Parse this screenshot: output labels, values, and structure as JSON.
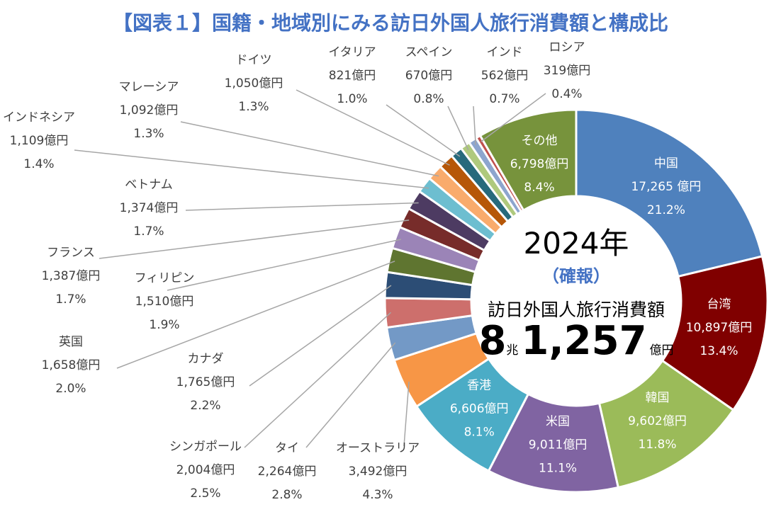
{
  "chart_data": {
    "type": "pie",
    "variant": "donut",
    "title": "【図表１】国籍・地域別にみる訪日外国人旅行消費額と構成比",
    "unit": "億円",
    "center": {
      "year": "2024年",
      "status": "（確報）",
      "caption": "訪日外国人旅行消費額",
      "total_cho": "8",
      "cho_unit": "兆",
      "total_oku": "1,257",
      "oku_unit": "億円"
    },
    "slices": [
      {
        "name": "中国",
        "value": 17265,
        "value_label": "17,265 億円",
        "pct": "21.2%",
        "color": "#4F81BD"
      },
      {
        "name": "台湾",
        "value": 10897,
        "value_label": "10,897億円",
        "pct": "13.4%",
        "color": "#800000"
      },
      {
        "name": "韓国",
        "value": 9602,
        "value_label": "9,602億円",
        "pct": "11.8%",
        "color": "#9BBB59"
      },
      {
        "name": "米国",
        "value": 9011,
        "value_label": "9,011億円",
        "pct": "11.1%",
        "color": "#8064A2"
      },
      {
        "name": "香港",
        "value": 6606,
        "value_label": "6,606億円",
        "pct": "8.1%",
        "color": "#4BACC6"
      },
      {
        "name": "オーストラリア",
        "value": 3492,
        "value_label": "3,492億円",
        "pct": "4.3%",
        "color": "#F79646"
      },
      {
        "name": "タイ",
        "value": 2264,
        "value_label": "2,264億円",
        "pct": "2.8%",
        "color": "#7399C6"
      },
      {
        "name": "シンガポール",
        "value": 2004,
        "value_label": "2,004億円",
        "pct": "2.5%",
        "color": "#CD6F6C"
      },
      {
        "name": "カナダ",
        "value": 1765,
        "value_label": "1,765億円",
        "pct": "2.2%",
        "color": "#2C4D75"
      },
      {
        "name": "英国",
        "value": 1658,
        "value_label": "1,658億円",
        "pct": "2.0%",
        "color": "#5F7530"
      },
      {
        "name": "フィリピン",
        "value": 1510,
        "value_label": "1,510億円",
        "pct": "1.9%",
        "color": "#9B84B7"
      },
      {
        "name": "フランス",
        "value": 1387,
        "value_label": "1,387億円",
        "pct": "1.7%",
        "color": "#772C2A"
      },
      {
        "name": "ベトナム",
        "value": 1374,
        "value_label": "1,374億円",
        "pct": "1.7%",
        "color": "#4D3B62"
      },
      {
        "name": "インドネシア",
        "value": 1109,
        "value_label": "1,109億円",
        "pct": "1.4%",
        "color": "#6DBED0"
      },
      {
        "name": "マレーシア",
        "value": 1092,
        "value_label": "1,092億円",
        "pct": "1.3%",
        "color": "#F9AB6C"
      },
      {
        "name": "ドイツ",
        "value": 1050,
        "value_label": "1,050億円",
        "pct": "1.3%",
        "color": "#B65708"
      },
      {
        "name": "イタリア",
        "value": 821,
        "value_label": "821億円",
        "pct": "1.0%",
        "color": "#276A7C"
      },
      {
        "name": "スペイン",
        "value": 670,
        "value_label": "670億円",
        "pct": "0.8%",
        "color": "#AFC97D"
      },
      {
        "name": "インド",
        "value": 562,
        "value_label": "562億円",
        "pct": "0.7%",
        "color": "#8DA5CE"
      },
      {
        "name": "ロシア",
        "value": 319,
        "value_label": "319億円",
        "pct": "0.4%",
        "color": "#C0504D"
      },
      {
        "name": "その他",
        "value": 6798,
        "value_label": "6,798億円",
        "pct": "8.4%",
        "color": "#77933C"
      }
    ]
  }
}
